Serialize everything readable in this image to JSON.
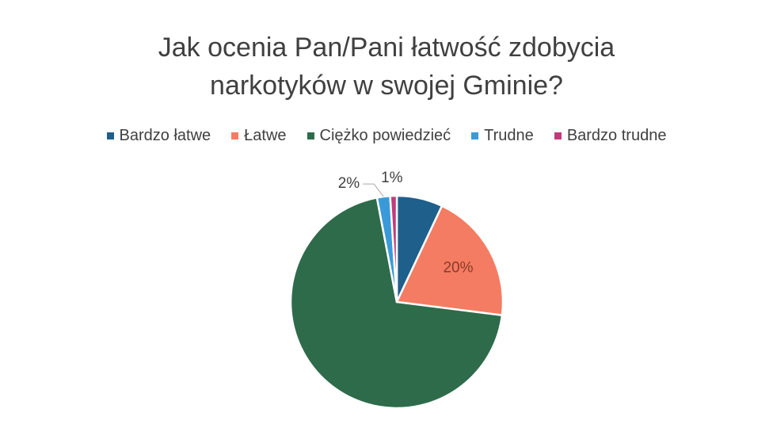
{
  "chart_data": {
    "type": "pie",
    "title_lines": [
      "Jak ocenia Pan/Pani łatwość zdobycia",
      "narkotyków w swojej Gminie?"
    ],
    "legend_position": "top",
    "categories": [
      "Bardzo łatwe",
      "Łatwe",
      "Ciężko powiedzieć",
      "Trudne",
      "Bardzo trudne"
    ],
    "values": [
      7,
      20,
      70,
      2,
      1
    ],
    "unit": "%",
    "colors": [
      "#1f5f8b",
      "#f47c62",
      "#2e6b4a",
      "#3a9ad9",
      "#c13b7a"
    ],
    "data_labels": [
      "",
      "20%",
      "",
      "2%",
      "1%"
    ]
  }
}
